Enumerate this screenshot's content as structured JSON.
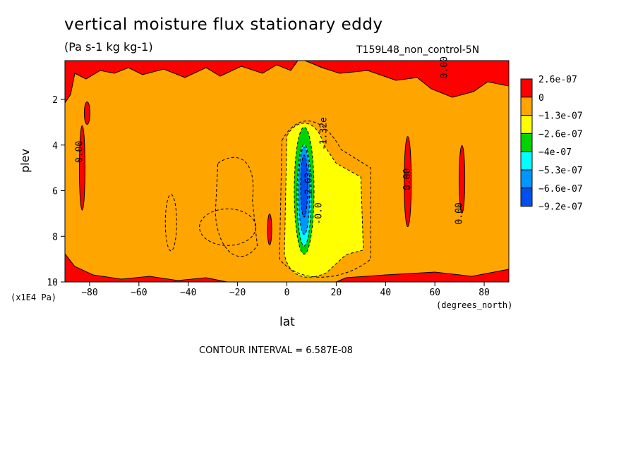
{
  "chart_data": {
    "type": "heatmap",
    "title": "vertical moisture flux stationary eddy",
    "subtitle": "(Pa s-1 kg kg-1)",
    "run_label": "T159L48_non_control-5N",
    "xlabel": "lat",
    "x_units": "(degrees_north)",
    "ylabel": "plev",
    "y_units": "(x1E4 Pa)",
    "xlim": [
      -90,
      90
    ],
    "ylim": [
      10,
      0.3
    ],
    "x_ticks": [
      -80,
      -60,
      -40,
      -20,
      0,
      20,
      40,
      60,
      80
    ],
    "y_ticks": [
      2,
      4,
      6,
      8,
      10
    ],
    "contour_interval_text": "CONTOUR INTERVAL = 6.587E-08",
    "colorbar": {
      "labels": [
        "2.6e-07",
        "0",
        "-1.3e-07",
        "-2.6e-07",
        "-4e-07",
        "-5.3e-07",
        "-6.6e-07",
        "-9.2e-07"
      ],
      "colors": [
        "#ff0000",
        "#ffa500",
        "#ffff00",
        "#00d400",
        "#00ffff",
        "#0096ff",
        "#0050f0"
      ]
    },
    "contour_labels": [
      {
        "text": "0.00",
        "lat": -83,
        "plev": 4.3
      },
      {
        "text": "0.00",
        "lat": 50,
        "plev": 5.5
      },
      {
        "text": "0.00",
        "lat": 71,
        "plev": 7.0
      },
      {
        "text": "0.00",
        "lat": 65,
        "plev": 0.6
      },
      {
        "text": "-1.32e",
        "lat": 16,
        "plev": 3.5
      },
      {
        "text": "-2.63",
        "lat": 10,
        "plev": 5.8
      },
      {
        "text": "-0.0",
        "lat": 14,
        "plev": 7.0
      }
    ],
    "features": [
      {
        "name": "equatorial minimum",
        "lat": 7,
        "plev": 6,
        "min_value": -9.2e-07
      },
      {
        "name": "positive band near 48N",
        "lat": 49,
        "plev_range": [
          4.5,
          8
        ]
      },
      {
        "name": "positive band near 72N",
        "lat": 71,
        "plev_range": [
          4,
          7.5
        ]
      },
      {
        "name": "positive band near 83S",
        "lat": -83,
        "plev_range": [
          4,
          7
        ]
      },
      {
        "name": "upper positive patches",
        "plev_range": [
          0.3,
          1.5
        ]
      }
    ]
  }
}
